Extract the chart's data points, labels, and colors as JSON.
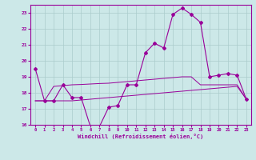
{
  "x": [
    0,
    1,
    2,
    3,
    4,
    5,
    6,
    7,
    8,
    9,
    10,
    11,
    12,
    13,
    14,
    15,
    16,
    17,
    18,
    19,
    20,
    21,
    22,
    23
  ],
  "line_main": [
    19.5,
    17.5,
    17.5,
    18.5,
    17.7,
    17.7,
    15.9,
    15.9,
    17.1,
    17.2,
    18.5,
    18.5,
    20.5,
    21.1,
    20.8,
    22.9,
    23.3,
    22.9,
    22.4,
    19.0,
    19.1,
    19.2,
    19.1,
    17.6
  ],
  "line_lower": [
    17.5,
    17.5,
    17.5,
    17.5,
    17.5,
    17.55,
    17.6,
    17.65,
    17.7,
    17.75,
    17.8,
    17.85,
    17.9,
    17.95,
    18.0,
    18.05,
    18.1,
    18.15,
    18.2,
    18.25,
    18.3,
    18.35,
    18.4,
    17.6
  ],
  "line_upper": [
    17.5,
    17.5,
    18.4,
    18.45,
    18.5,
    18.52,
    18.55,
    18.58,
    18.6,
    18.65,
    18.7,
    18.75,
    18.8,
    18.85,
    18.9,
    18.95,
    19.0,
    19.0,
    18.5,
    18.5,
    18.5,
    18.5,
    18.5,
    17.6
  ],
  "ylim": [
    16,
    23.5
  ],
  "yticks": [
    16,
    17,
    18,
    19,
    20,
    21,
    22,
    23
  ],
  "xlabel": "Windchill (Refroidissement éolien,°C)",
  "line_color": "#990099",
  "bg_color": "#cce8e8",
  "grid_color": "#aacccc",
  "spine_color": "#990099"
}
